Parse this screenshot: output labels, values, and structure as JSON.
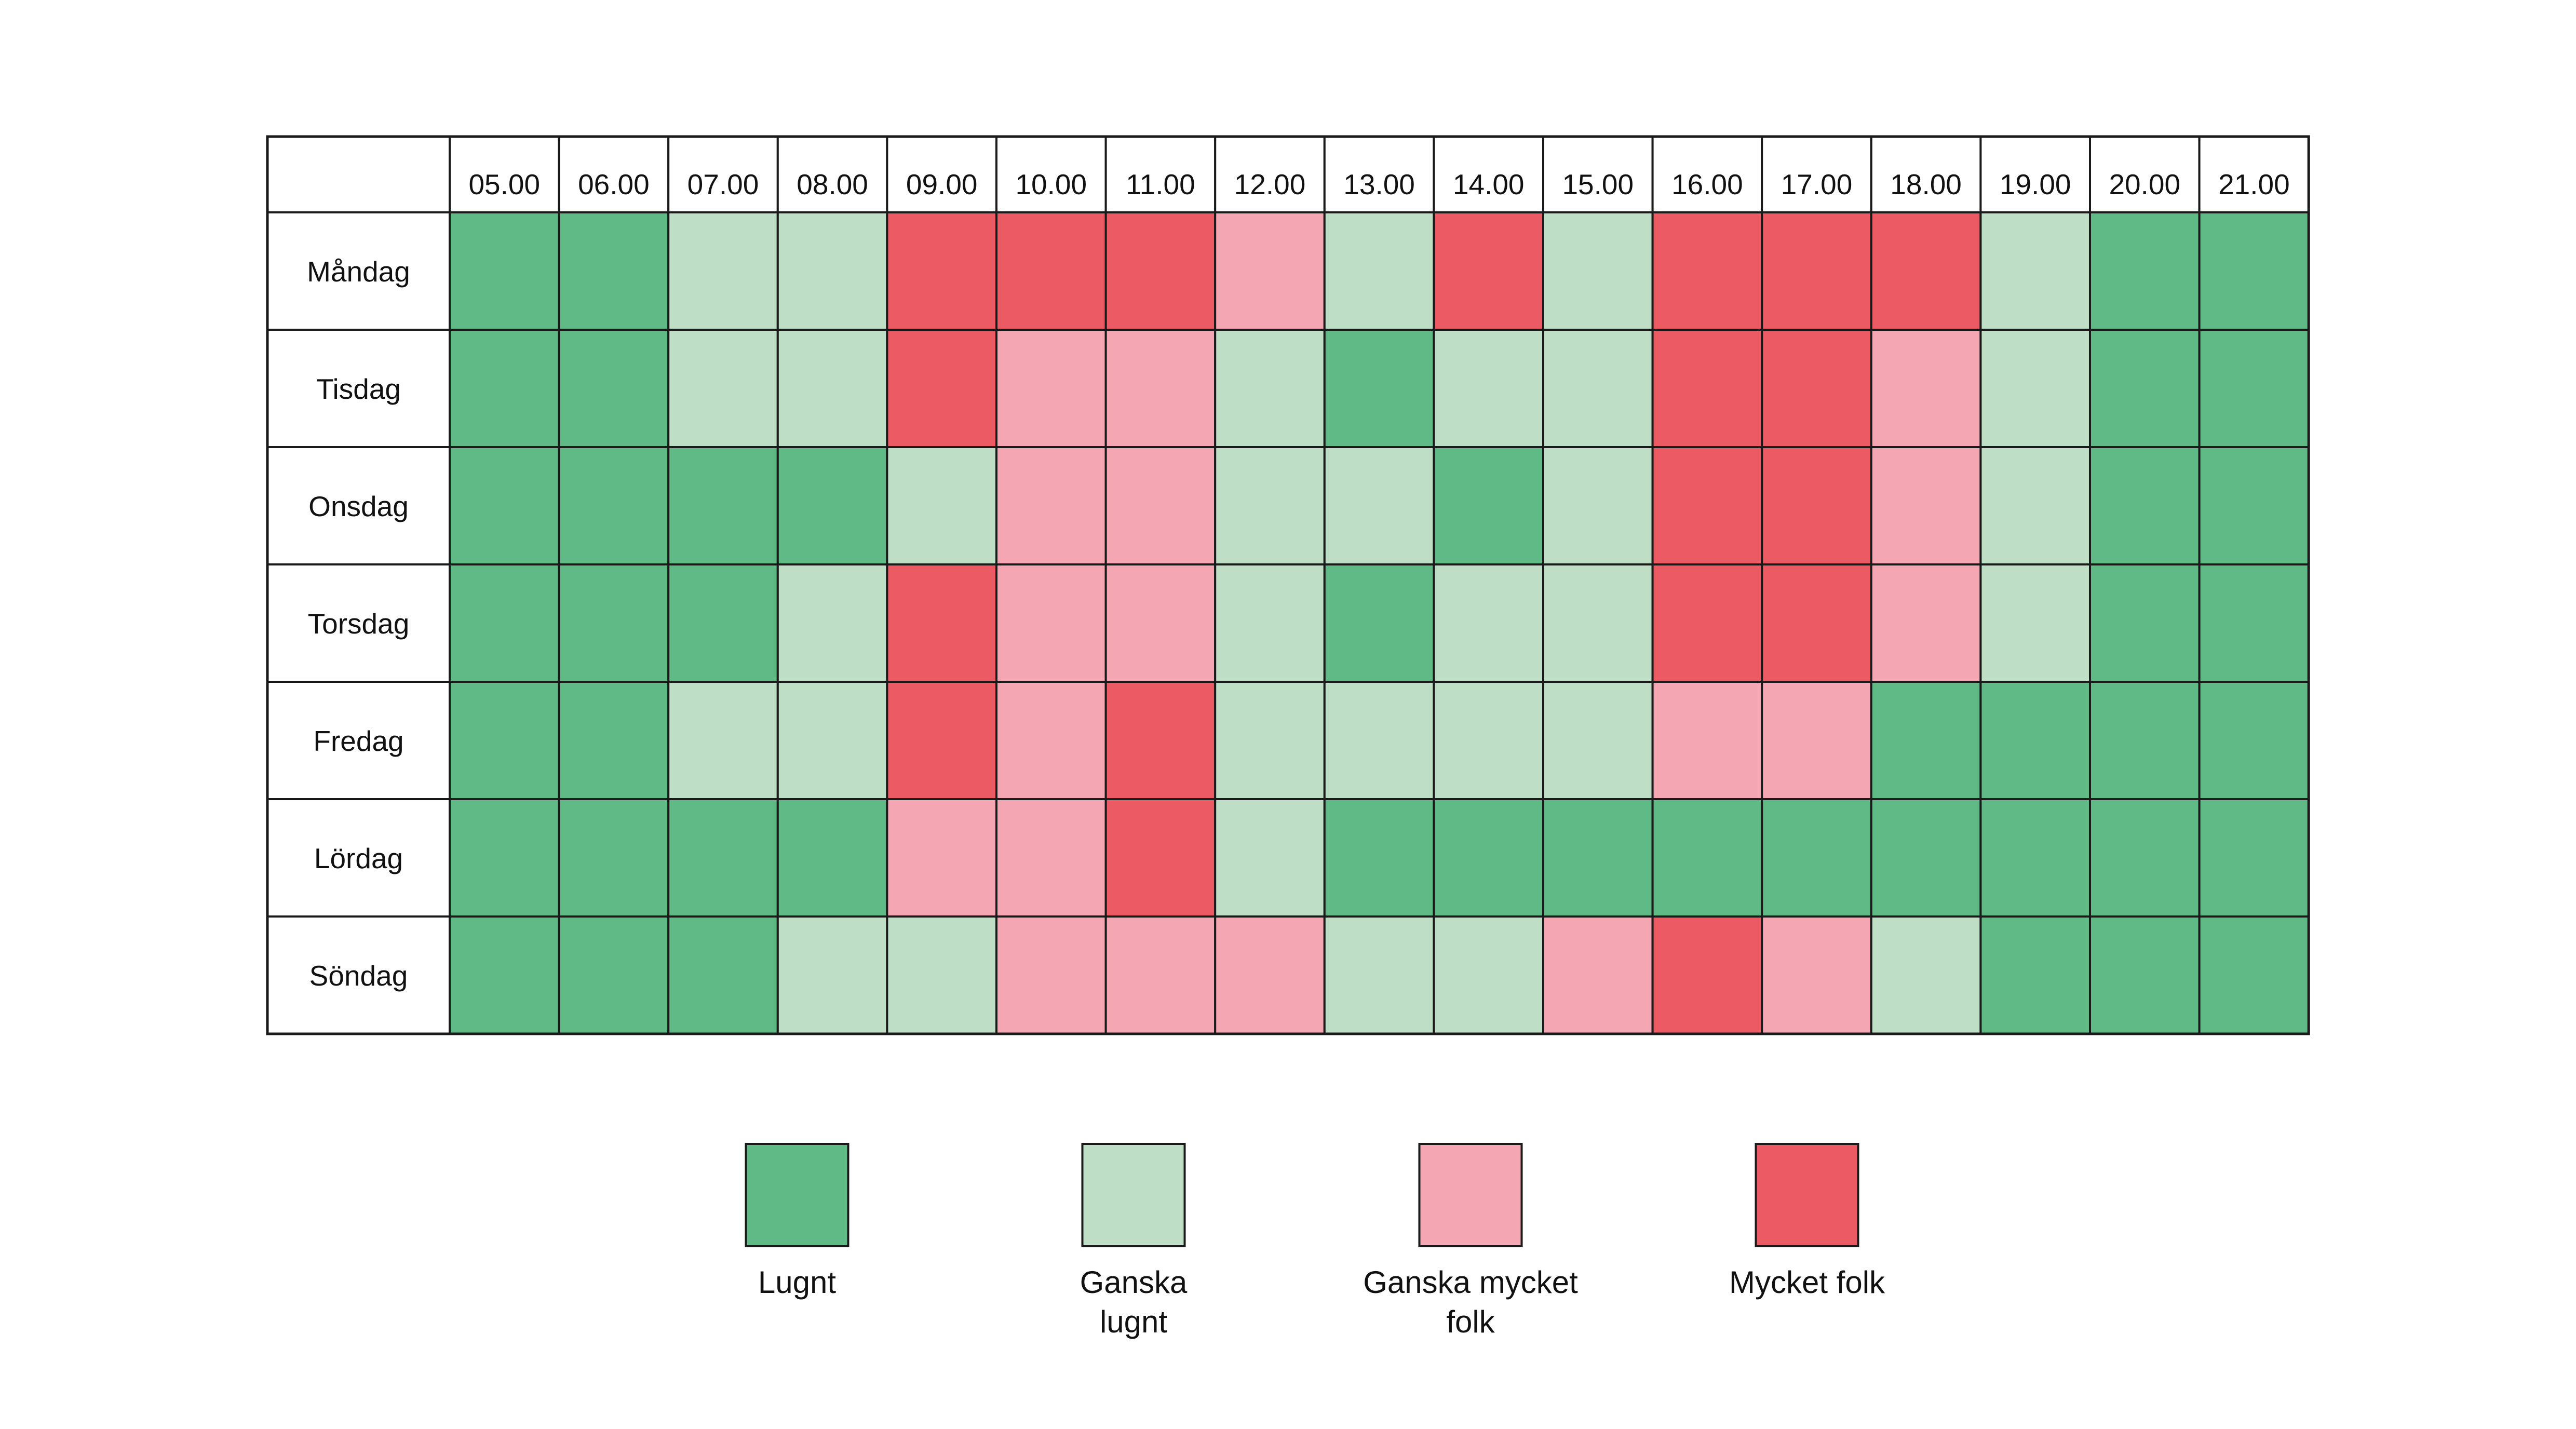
{
  "chart_data": {
    "type": "heatmap",
    "title": "",
    "xlabel": "",
    "ylabel": "",
    "hours": [
      "05.00",
      "06.00",
      "07.00",
      "08.00",
      "09.00",
      "10.00",
      "11.00",
      "12.00",
      "13.00",
      "14.00",
      "15.00",
      "16.00",
      "17.00",
      "18.00",
      "19.00",
      "20.00",
      "21.00"
    ],
    "days": [
      "Måndag",
      "Tisdag",
      "Onsdag",
      "Torsdag",
      "Fredag",
      "Lördag",
      "Söndag"
    ],
    "levels": [
      {
        "level": 0,
        "label": "Lugnt",
        "color": "#5fba86"
      },
      {
        "level": 1,
        "label": "Ganska lugnt",
        "color": "#bfdec6"
      },
      {
        "level": 2,
        "label": "Ganska mycket folk",
        "color": "#f4a6b2"
      },
      {
        "level": 3,
        "label": "Mycket folk",
        "color": "#ec5b64"
      }
    ],
    "values": [
      [
        0,
        0,
        1,
        1,
        3,
        3,
        3,
        2,
        1,
        3,
        1,
        3,
        3,
        3,
        1,
        0,
        0
      ],
      [
        0,
        0,
        1,
        1,
        3,
        2,
        2,
        1,
        0,
        1,
        1,
        3,
        3,
        2,
        1,
        0,
        0
      ],
      [
        0,
        0,
        0,
        0,
        1,
        2,
        2,
        1,
        1,
        0,
        1,
        3,
        3,
        2,
        1,
        0,
        0
      ],
      [
        0,
        0,
        0,
        1,
        3,
        2,
        2,
        1,
        0,
        1,
        1,
        3,
        3,
        2,
        1,
        0,
        0
      ],
      [
        0,
        0,
        1,
        1,
        3,
        2,
        3,
        1,
        1,
        1,
        1,
        2,
        2,
        0,
        0,
        0,
        0
      ],
      [
        0,
        0,
        0,
        0,
        2,
        2,
        3,
        1,
        0,
        0,
        0,
        0,
        0,
        0,
        0,
        0,
        0
      ],
      [
        0,
        0,
        0,
        1,
        1,
        2,
        2,
        2,
        1,
        1,
        2,
        3,
        2,
        1,
        0,
        0,
        0
      ]
    ],
    "legend": {
      "placement": "bottom",
      "entries": [
        {
          "level": 0,
          "lines": [
            "Lugnt"
          ]
        },
        {
          "level": 1,
          "lines": [
            "Ganska",
            "lugnt"
          ]
        },
        {
          "level": 2,
          "lines": [
            "Ganska mycket",
            "folk"
          ]
        },
        {
          "level": 3,
          "lines": [
            "Mycket folk"
          ]
        }
      ]
    },
    "grid": true
  }
}
